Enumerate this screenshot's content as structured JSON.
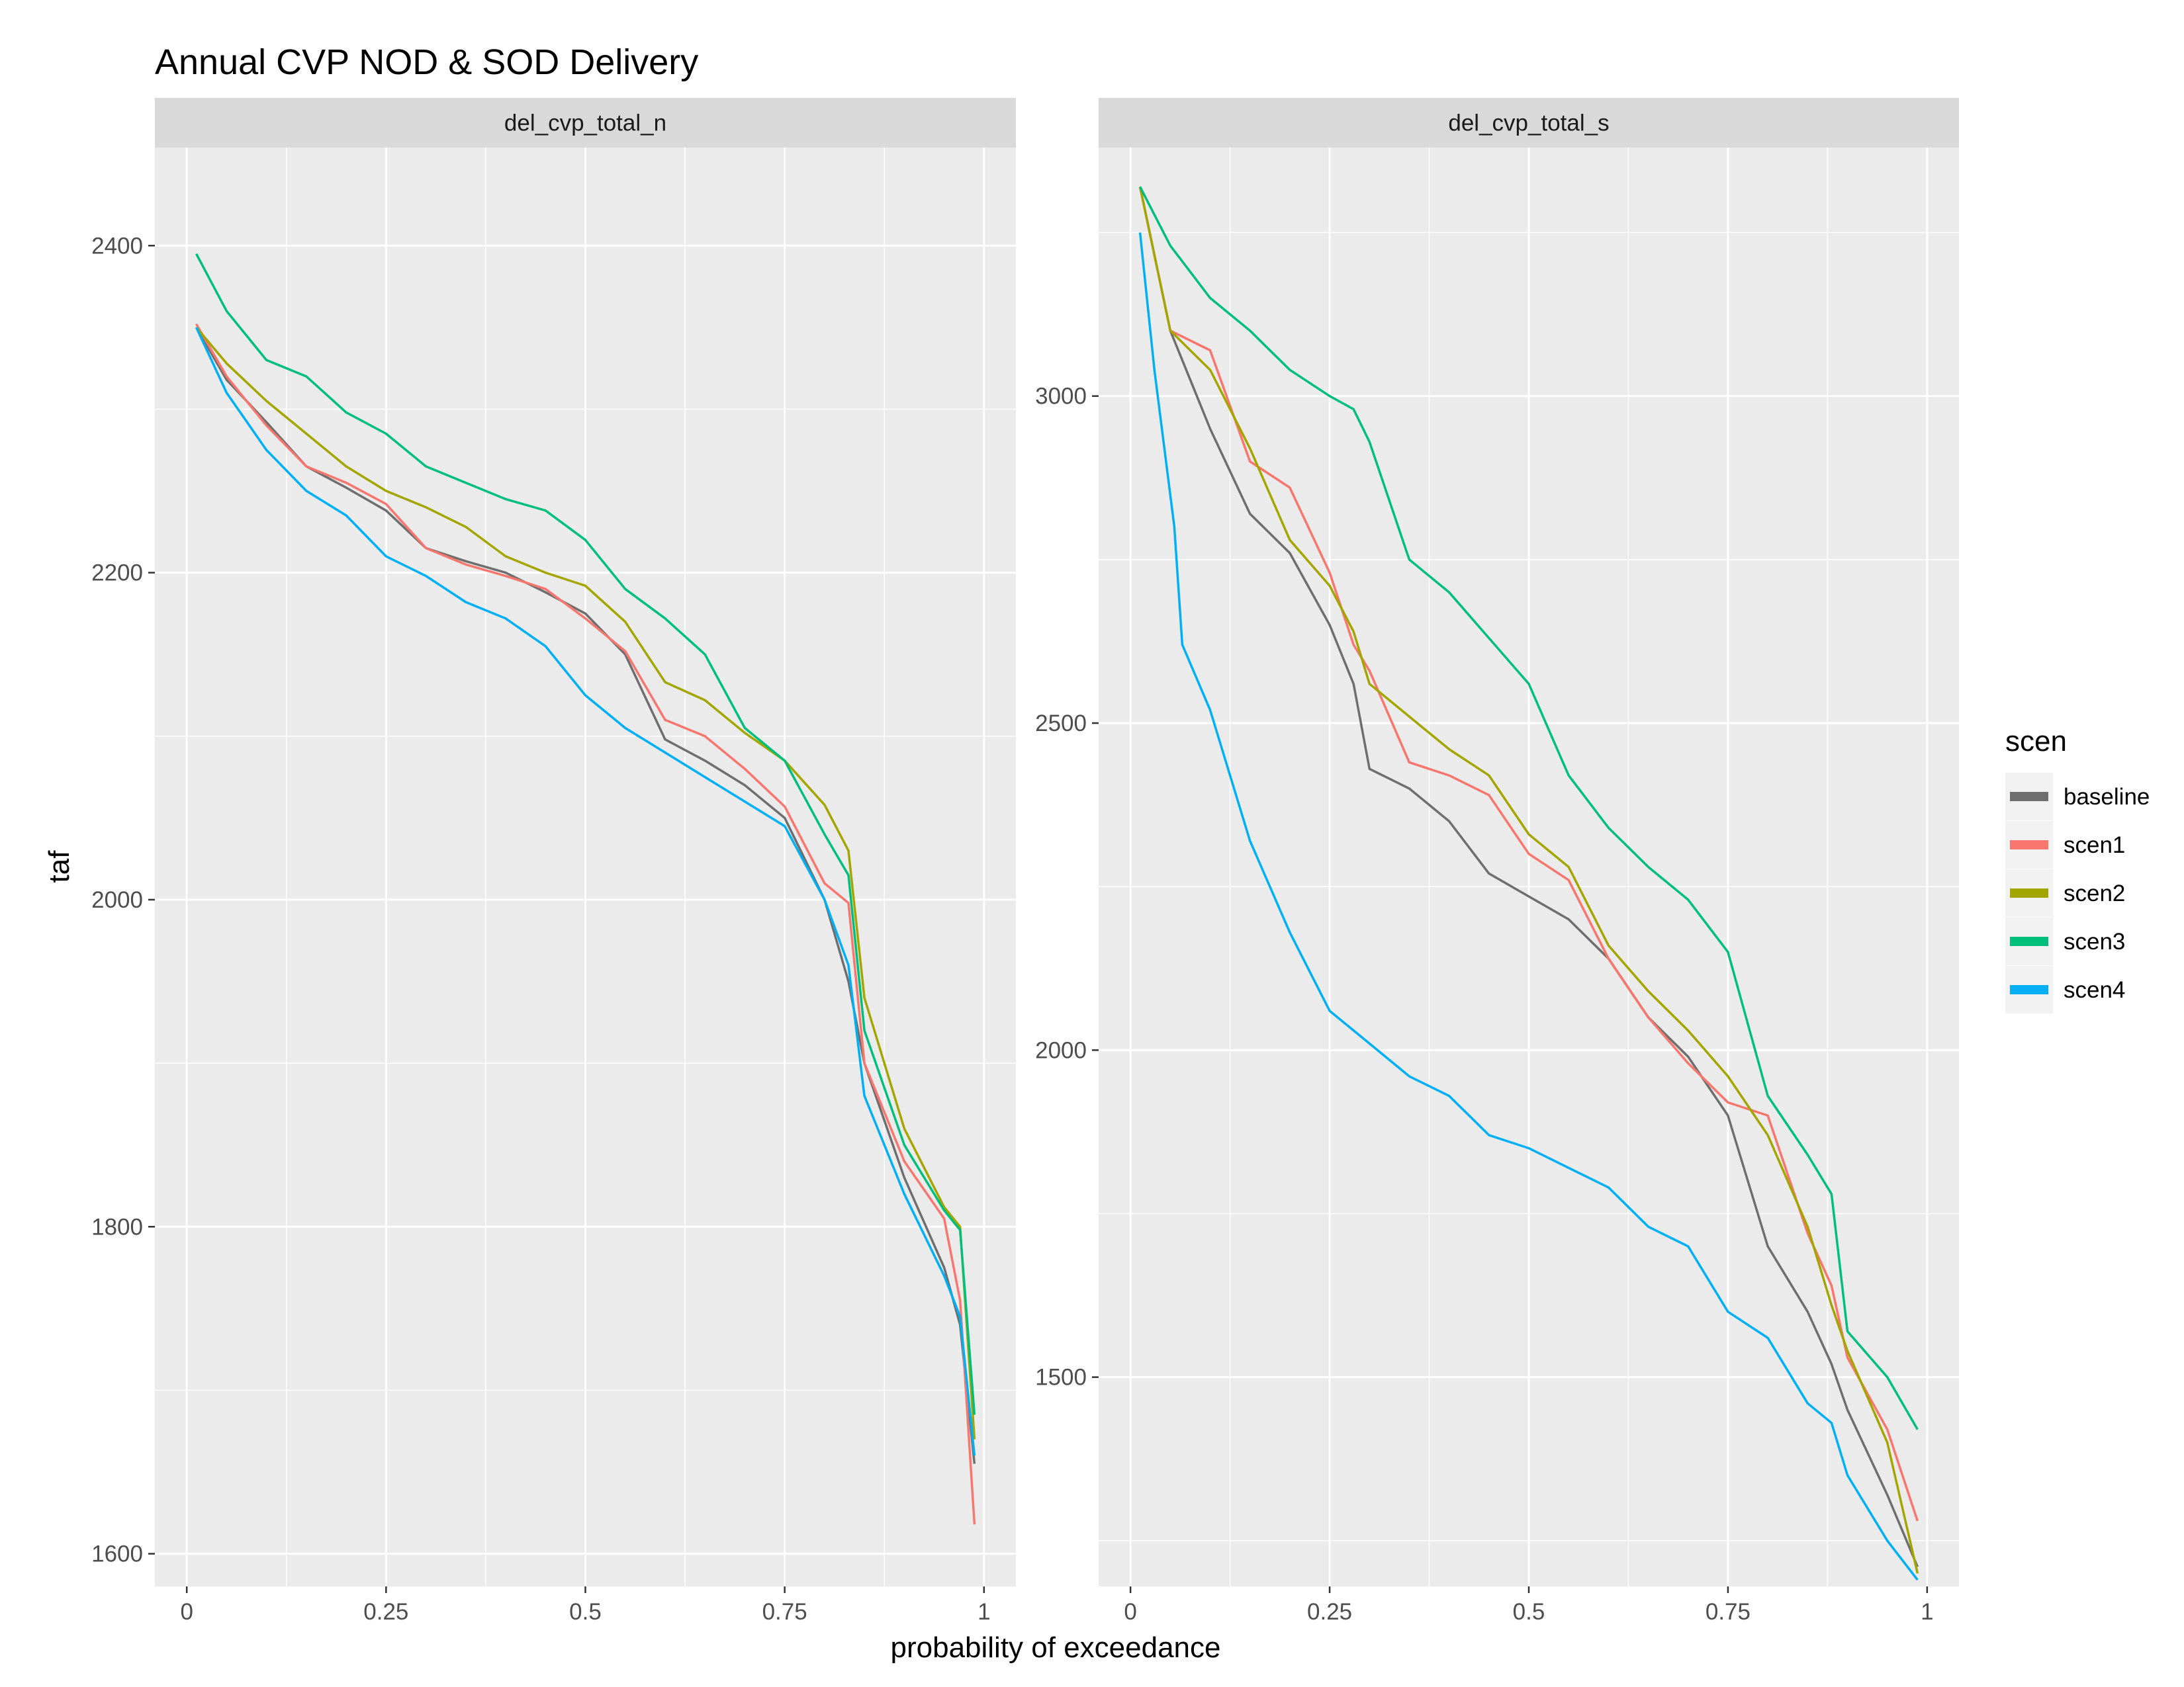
{
  "chart_data": {
    "type": "line",
    "title": "Annual CVP NOD & SOD Delivery",
    "xlabel": "probability of exceedance",
    "ylabel": "taf",
    "x_ticks": [
      "0",
      "0.25",
      "0.5",
      "0.75",
      "1"
    ],
    "x_tick_values": [
      0,
      0.25,
      0.5,
      0.75,
      1
    ],
    "xlim": [
      -0.04,
      1.04
    ],
    "grid": true,
    "legend": {
      "title": "scen",
      "position": "right"
    },
    "colors": {
      "baseline": "#6e6e6e",
      "scen1": "#f8766d",
      "scen2": "#a3a500",
      "scen3": "#00bf7d",
      "scen4": "#00b0f6"
    },
    "facets": [
      {
        "label": "del_cvp_total_n",
        "ylim": [
          1580,
          2460
        ],
        "y_ticks": [
          "1600",
          "1800",
          "2000",
          "2200",
          "2400"
        ],
        "y_tick_values": [
          1600,
          1800,
          2000,
          2200,
          2400
        ],
        "series": [
          {
            "name": "baseline",
            "x": [
              0.012,
              0.05,
              0.1,
              0.15,
              0.2,
              0.25,
              0.3,
              0.35,
              0.4,
              0.45,
              0.5,
              0.55,
              0.6,
              0.65,
              0.7,
              0.75,
              0.8,
              0.83,
              0.85,
              0.9,
              0.95,
              0.97,
              0.988
            ],
            "y": [
              2350,
              2318,
              2292,
              2265,
              2252,
              2238,
              2215,
              2207,
              2200,
              2188,
              2175,
              2150,
              2098,
              2085,
              2070,
              2050,
              2000,
              1950,
              1900,
              1830,
              1775,
              1740,
              1655
            ]
          },
          {
            "name": "scen1",
            "x": [
              0.012,
              0.05,
              0.1,
              0.15,
              0.2,
              0.25,
              0.3,
              0.35,
              0.4,
              0.45,
              0.5,
              0.55,
              0.6,
              0.65,
              0.7,
              0.75,
              0.8,
              0.83,
              0.85,
              0.9,
              0.95,
              0.97,
              0.988
            ],
            "y": [
              2352,
              2320,
              2290,
              2265,
              2255,
              2242,
              2215,
              2205,
              2198,
              2190,
              2172,
              2152,
              2110,
              2100,
              2080,
              2057,
              2010,
              1998,
              1900,
              1840,
              1805,
              1755,
              1618
            ]
          },
          {
            "name": "scen2",
            "x": [
              0.012,
              0.05,
              0.1,
              0.15,
              0.2,
              0.25,
              0.3,
              0.35,
              0.4,
              0.45,
              0.5,
              0.55,
              0.6,
              0.65,
              0.7,
              0.75,
              0.8,
              0.83,
              0.85,
              0.9,
              0.95,
              0.97,
              0.988
            ],
            "y": [
              2350,
              2328,
              2305,
              2285,
              2265,
              2250,
              2240,
              2228,
              2210,
              2200,
              2192,
              2170,
              2133,
              2122,
              2102,
              2085,
              2058,
              2030,
              1940,
              1860,
              1812,
              1800,
              1670
            ]
          },
          {
            "name": "scen3",
            "x": [
              0.012,
              0.05,
              0.1,
              0.15,
              0.2,
              0.25,
              0.3,
              0.35,
              0.4,
              0.45,
              0.5,
              0.55,
              0.6,
              0.65,
              0.7,
              0.75,
              0.8,
              0.83,
              0.85,
              0.9,
              0.95,
              0.97,
              0.988
            ],
            "y": [
              2395,
              2360,
              2330,
              2320,
              2298,
              2285,
              2265,
              2255,
              2245,
              2238,
              2220,
              2190,
              2172,
              2150,
              2105,
              2085,
              2040,
              2015,
              1920,
              1850,
              1810,
              1798,
              1685
            ]
          },
          {
            "name": "scen4",
            "x": [
              0.012,
              0.05,
              0.1,
              0.15,
              0.2,
              0.25,
              0.3,
              0.35,
              0.4,
              0.45,
              0.5,
              0.55,
              0.6,
              0.65,
              0.7,
              0.75,
              0.8,
              0.83,
              0.85,
              0.9,
              0.95,
              0.97,
              0.988
            ],
            "y": [
              2350,
              2310,
              2275,
              2250,
              2235,
              2210,
              2198,
              2182,
              2172,
              2155,
              2125,
              2105,
              2090,
              2075,
              2060,
              2045,
              2000,
              1960,
              1880,
              1820,
              1770,
              1745,
              1660
            ]
          }
        ]
      },
      {
        "label": "del_cvp_total_s",
        "ylim": [
          1180,
          3380
        ],
        "y_ticks": [
          "1500",
          "2000",
          "2500",
          "3000"
        ],
        "y_tick_values": [
          1500,
          2000,
          2500,
          3000
        ],
        "series": [
          {
            "name": "baseline",
            "x": [
              0.012,
              0.05,
              0.1,
              0.15,
              0.2,
              0.25,
              0.28,
              0.3,
              0.35,
              0.4,
              0.45,
              0.5,
              0.55,
              0.6,
              0.65,
              0.7,
              0.75,
              0.8,
              0.85,
              0.88,
              0.9,
              0.95,
              0.988
            ],
            "y": [
              3320,
              3100,
              2950,
              2820,
              2760,
              2650,
              2560,
              2430,
              2400,
              2350,
              2270,
              2235,
              2200,
              2140,
              2050,
              1990,
              1900,
              1700,
              1600,
              1520,
              1450,
              1320,
              1210
            ]
          },
          {
            "name": "scen1",
            "x": [
              0.012,
              0.05,
              0.1,
              0.15,
              0.2,
              0.25,
              0.28,
              0.3,
              0.35,
              0.4,
              0.45,
              0.5,
              0.55,
              0.6,
              0.65,
              0.7,
              0.75,
              0.8,
              0.85,
              0.88,
              0.9,
              0.95,
              0.988
            ],
            "y": [
              3320,
              3100,
              3070,
              2900,
              2860,
              2730,
              2620,
              2580,
              2440,
              2420,
              2390,
              2300,
              2260,
              2140,
              2050,
              1980,
              1920,
              1900,
              1720,
              1640,
              1530,
              1420,
              1280
            ]
          },
          {
            "name": "scen2",
            "x": [
              0.012,
              0.05,
              0.1,
              0.15,
              0.2,
              0.25,
              0.28,
              0.3,
              0.35,
              0.4,
              0.45,
              0.5,
              0.55,
              0.6,
              0.65,
              0.7,
              0.75,
              0.8,
              0.85,
              0.88,
              0.9,
              0.95,
              0.988
            ],
            "y": [
              3320,
              3100,
              3040,
              2920,
              2780,
              2710,
              2640,
              2560,
              2510,
              2460,
              2420,
              2330,
              2280,
              2160,
              2090,
              2030,
              1960,
              1870,
              1730,
              1610,
              1540,
              1400,
              1200
            ]
          },
          {
            "name": "scen3",
            "x": [
              0.012,
              0.05,
              0.1,
              0.15,
              0.2,
              0.25,
              0.28,
              0.3,
              0.35,
              0.4,
              0.45,
              0.5,
              0.55,
              0.6,
              0.65,
              0.7,
              0.75,
              0.8,
              0.85,
              0.88,
              0.9,
              0.95,
              0.988
            ],
            "y": [
              3320,
              3230,
              3150,
              3100,
              3040,
              3000,
              2980,
              2930,
              2750,
              2700,
              2630,
              2560,
              2420,
              2340,
              2280,
              2230,
              2150,
              1930,
              1840,
              1780,
              1570,
              1500,
              1420
            ]
          },
          {
            "name": "scen4",
            "x": [
              0.012,
              0.03,
              0.055,
              0.065,
              0.1,
              0.15,
              0.2,
              0.25,
              0.3,
              0.35,
              0.4,
              0.45,
              0.5,
              0.55,
              0.6,
              0.65,
              0.7,
              0.75,
              0.8,
              0.85,
              0.88,
              0.9,
              0.95,
              0.988
            ],
            "y": [
              3250,
              3040,
              2800,
              2620,
              2520,
              2320,
              2180,
              2060,
              2010,
              1960,
              1930,
              1870,
              1850,
              1820,
              1790,
              1730,
              1700,
              1600,
              1560,
              1460,
              1430,
              1350,
              1250,
              1190
            ]
          }
        ]
      }
    ]
  }
}
